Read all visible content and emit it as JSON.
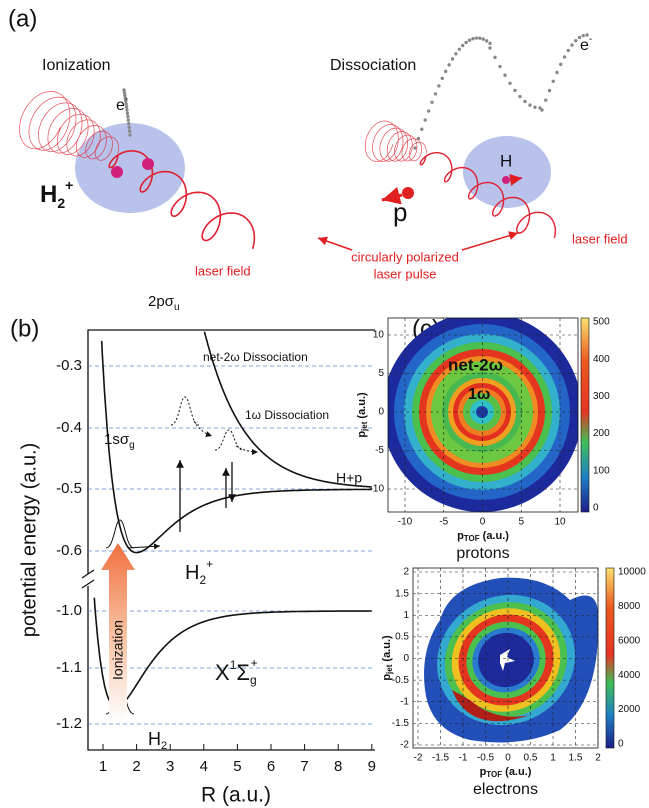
{
  "panel_a": {
    "label": "(a)",
    "ionization": {
      "title": "Ionization",
      "electron": "e",
      "electron_sup": "-",
      "molecule": "H",
      "molecule_sub": "2",
      "molecule_sup": "+",
      "field": "laser field"
    },
    "dissociation": {
      "title": "Dissociation",
      "electron": "e",
      "electron_sup": "-",
      "atom": "H",
      "proton": "p",
      "field": "laser field"
    },
    "pulse_label": [
      "circularly polarized",
      "laser pulse"
    ]
  },
  "panel_b": {
    "label": "(b)",
    "y_label": "potential energy (a.u.)",
    "x_label": "R (a.u.)",
    "yticks_upper": [
      "-0.3",
      "-0.4",
      "-0.5",
      "-0.6"
    ],
    "yticks_lower": [
      "-1.0",
      "-1.1",
      "-1.2"
    ],
    "xticks": [
      "1",
      "2",
      "3",
      "4",
      "5",
      "6",
      "7",
      "8",
      "9"
    ],
    "curves": {
      "upper": {
        "name": "2pσ",
        "sub": "u"
      },
      "lower": {
        "name": "1sσ",
        "sub": "g"
      },
      "ground": {
        "name": "X",
        "sup1": "1",
        "mid": "Σ",
        "sub": "g",
        "sup2": "+"
      }
    },
    "annotations": {
      "net2w": "net-2ω Dissociation",
      "w1": "1ω Dissociation",
      "limit": "H+p",
      "ion": "H",
      "ion_sub": "2",
      "ion_sup": "+",
      "neutral": "H",
      "neutral_sub": "2",
      "ionization": "Ionization"
    }
  },
  "panel_c": {
    "label": "(c)",
    "protons": {
      "y_label": "p",
      "y_sub": "jet",
      "x_label": "p",
      "x_sub": "TOF",
      "unit": "(a.u.)",
      "caption": "protons",
      "xticks": [
        "-10",
        "-5",
        "0",
        "5",
        "10"
      ],
      "yticks": [
        "10",
        "5",
        "0",
        "-5",
        "-10"
      ],
      "colorbar_ticks": [
        "0",
        "100",
        "200",
        "300",
        "400",
        "500"
      ],
      "ring_outer": "net-2ω",
      "ring_inner": "1ω"
    },
    "electrons": {
      "y_label": "p",
      "y_sub": "jet",
      "x_label": "p",
      "x_sub": "TOF",
      "unit": "(a.u.)",
      "caption": "electrons",
      "xticks": [
        "-2",
        "-1.5",
        "-1",
        "-0.5",
        "0",
        "0.5",
        "1",
        "1.5",
        "2"
      ],
      "yticks": [
        "2",
        "1.5",
        "1",
        "0.5",
        "0",
        "-0.5",
        "-1",
        "-1.5",
        "-2"
      ],
      "colorbar_ticks": [
        "0",
        "2000",
        "4000",
        "6000",
        "8000",
        "10000"
      ]
    }
  }
}
